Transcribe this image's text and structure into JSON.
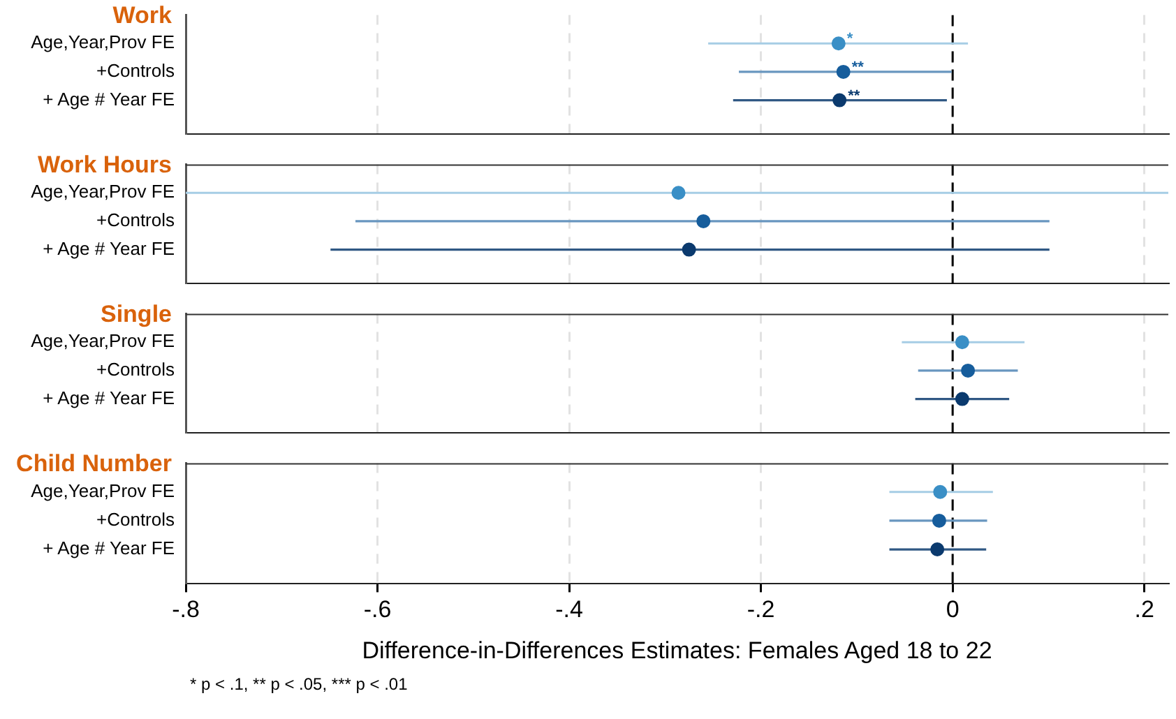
{
  "chart_data": [
    {
      "type": "scatter",
      "orientation": "horizontal",
      "title": "Work",
      "categories": [
        "Age,Year,Prov FE",
        "+Controls",
        "+ Age # Year FE"
      ],
      "values": [
        -0.119,
        -0.114,
        -0.118
      ],
      "colors": [
        "#3a8fc6",
        "#165d9c",
        "#0b3a6e"
      ],
      "errors": [
        [
          -0.255,
          0.016
        ],
        [
          -0.223,
          -0.001
        ],
        [
          -0.229,
          -0.006
        ]
      ],
      "xlim": [
        -0.8,
        0.225
      ],
      "xticks": [
        {
          "value": -0.8,
          "label": null
        },
        {
          "value": -0.6,
          "label": null
        },
        {
          "value": -0.4,
          "label": null
        },
        {
          "value": -0.2,
          "label": null
        },
        {
          "value": 0,
          "label": null
        },
        {
          "value": 0.2,
          "label": null
        }
      ],
      "tick_labels": "y",
      "grid": "x",
      "marker": "circle",
      "legend": false,
      "ref_lines": [
        {
          "axis": "x",
          "value": 0,
          "color": "#000000",
          "line_style": "dashed"
        }
      ],
      "annotations": [
        {
          "text": "*",
          "x": -0.119,
          "y": "Age,Year,Prov FE"
        },
        {
          "text": "**",
          "x": -0.114,
          "y": "+Controls"
        },
        {
          "text": "**",
          "x": -0.118,
          "y": "+ Age # Year FE"
        }
      ]
    },
    {
      "type": "scatter",
      "orientation": "horizontal",
      "title": "Work Hours",
      "categories": [
        "Age,Year,Prov FE",
        "+Controls",
        "+ Age # Year FE"
      ],
      "values": [
        -0.286,
        -0.26,
        -0.275
      ],
      "colors": [
        "#3a8fc6",
        "#165d9c",
        "#0b3a6e"
      ],
      "errors": [
        [
          -0.8,
          0.225
        ],
        [
          -0.623,
          0.101
        ],
        [
          -0.649,
          0.101
        ]
      ],
      "xlim": [
        -0.8,
        0.225
      ],
      "xticks": [
        {
          "value": -0.8,
          "label": null
        },
        {
          "value": -0.6,
          "label": null
        },
        {
          "value": -0.4,
          "label": null
        },
        {
          "value": -0.2,
          "label": null
        },
        {
          "value": 0,
          "label": null
        },
        {
          "value": 0.2,
          "label": null
        }
      ],
      "tick_labels": "y",
      "grid": "x",
      "marker": "circle",
      "legend": false,
      "ref_lines": [
        {
          "axis": "x",
          "value": 0,
          "color": "#000000",
          "line_style": "dashed"
        }
      ]
    },
    {
      "type": "scatter",
      "orientation": "horizontal",
      "title": "Single",
      "categories": [
        "Age,Year,Prov FE",
        "+Controls",
        "+ Age # Year FE"
      ],
      "values": [
        0.01,
        0.016,
        0.01
      ],
      "colors": [
        "#3a8fc6",
        "#165d9c",
        "#0b3a6e"
      ],
      "errors": [
        [
          -0.053,
          0.075
        ],
        [
          -0.036,
          0.068
        ],
        [
          -0.039,
          0.059
        ]
      ],
      "xlim": [
        -0.8,
        0.225
      ],
      "xticks": [
        {
          "value": -0.8,
          "label": null
        },
        {
          "value": -0.6,
          "label": null
        },
        {
          "value": -0.4,
          "label": null
        },
        {
          "value": -0.2,
          "label": null
        },
        {
          "value": 0,
          "label": null
        },
        {
          "value": 0.2,
          "label": null
        }
      ],
      "tick_labels": "y",
      "grid": "x",
      "marker": "circle",
      "legend": false,
      "ref_lines": [
        {
          "axis": "x",
          "value": 0,
          "color": "#000000",
          "line_style": "dashed"
        }
      ]
    },
    {
      "type": "scatter",
      "orientation": "horizontal",
      "title": "Child Number",
      "categories": [
        "Age,Year,Prov FE",
        "+Controls",
        "+ Age # Year FE"
      ],
      "values": [
        -0.013,
        -0.014,
        -0.016
      ],
      "colors": [
        "#3a8fc6",
        "#165d9c",
        "#0b3a6e"
      ],
      "errors": [
        [
          -0.066,
          0.042
        ],
        [
          -0.066,
          0.036
        ],
        [
          -0.066,
          0.035
        ]
      ],
      "xlim": [
        -0.8,
        0.225
      ],
      "xticks": [
        {
          "value": -0.8,
          "label": "-.8"
        },
        {
          "value": -0.6,
          "label": "-.6"
        },
        {
          "value": -0.4,
          "label": "-.4"
        },
        {
          "value": -0.2,
          "label": "-.2"
        },
        0,
        {
          "value": 0.2,
          "label": ".2"
        }
      ],
      "grid": "x",
      "marker": "circle",
      "legend": false,
      "xlabel": "Difference-in-Differences Estimates: Females Aged 18 to 22",
      "ref_lines": [
        {
          "axis": "x",
          "value": 0,
          "color": "#000000",
          "line_style": "dashed"
        }
      ],
      "annotations": [
        "* p < .1, ** p < .05, *** p < .01"
      ]
    }
  ]
}
